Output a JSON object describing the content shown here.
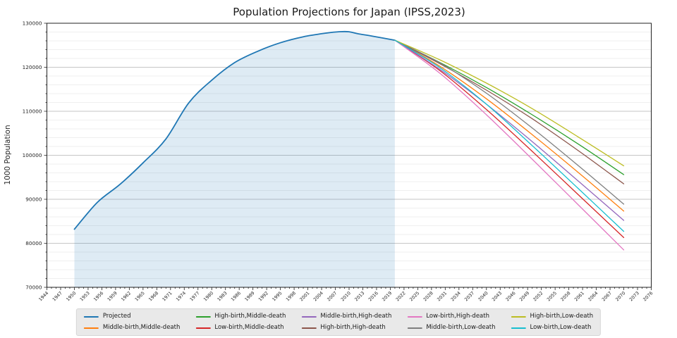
{
  "title": "Population Projections for Japan (IPSS,2023)",
  "ylabel": "1000 Population",
  "chart_data": {
    "type": "line",
    "title": "Population Projections for Japan (IPSS,2023)",
    "xlabel": "",
    "ylabel": "1000 Population",
    "xlim": [
      1944,
      2076
    ],
    "ylim": [
      70000,
      130000
    ],
    "x_major_tick_step": 3,
    "x_minor_tick_step": 1,
    "y_major_tick_step": 10000,
    "y_minor_tick_step": 2000,
    "grid": "horizontal major and minor gridlines, no vertical gridlines",
    "legend_position": "below axis, 5 columns x 2 rows, column-major",
    "historical_fill_range": [
      1950,
      2020
    ],
    "series": [
      {
        "name": "Projected",
        "role": "historical",
        "color": "#1f77b4",
        "fill": "rgba(31,119,180,0.15)",
        "linewidth": 1.8,
        "x": [
          1950,
          1955,
          1960,
          1965,
          1970,
          1975,
          1980,
          1985,
          1990,
          1995,
          2000,
          2005,
          2008,
          2010,
          2012,
          2015,
          2020
        ],
        "values": [
          83200,
          89276,
          93419,
          98275,
          103720,
          111940,
          117060,
          121049,
          123611,
          125570,
          126926,
          127768,
          128084,
          128057,
          127593,
          127095,
          126146
        ]
      },
      {
        "name": "Middle-birth,Middle-death",
        "role": "projection",
        "color": "#ff7f0e",
        "linewidth": 1.3,
        "x": [
          2020,
          2030,
          2040,
          2050,
          2060,
          2070
        ],
        "values": [
          126146,
          120116,
          112837,
          104686,
          96148,
          87320
        ]
      },
      {
        "name": "High-birth,Middle-death",
        "role": "projection",
        "color": "#2ca02c",
        "linewidth": 1.3,
        "x": [
          2020,
          2030,
          2040,
          2050,
          2060,
          2070
        ],
        "values": [
          126146,
          121000,
          115400,
          109200,
          102600,
          95600
        ]
      },
      {
        "name": "Low-birth,Middle-death",
        "role": "projection",
        "color": "#d62728",
        "linewidth": 1.3,
        "x": [
          2020,
          2030,
          2040,
          2050,
          2060,
          2070
        ],
        "values": [
          126146,
          119100,
          110400,
          100900,
          91100,
          81300
        ]
      },
      {
        "name": "Middle-birth,High-death",
        "role": "projection",
        "color": "#9467bd",
        "linewidth": 1.3,
        "x": [
          2020,
          2030,
          2040,
          2050,
          2060,
          2070
        ],
        "values": [
          126146,
          119400,
          111600,
          103100,
          94200,
          85200
        ]
      },
      {
        "name": "High-birth,High-death",
        "role": "projection",
        "color": "#8c564b",
        "linewidth": 1.3,
        "x": [
          2020,
          2030,
          2040,
          2050,
          2060,
          2070
        ],
        "values": [
          126146,
          120700,
          114800,
          108300,
          101100,
          93500
        ]
      },
      {
        "name": "Low-birth,High-death",
        "role": "projection",
        "color": "#e377c2",
        "linewidth": 1.3,
        "x": [
          2020,
          2030,
          2040,
          2050,
          2060,
          2070
        ],
        "values": [
          126146,
          118500,
          109200,
          99100,
          88800,
          78500
        ]
      },
      {
        "name": "Middle-birth,Low-death",
        "role": "projection",
        "color": "#7f7f7f",
        "linewidth": 1.3,
        "x": [
          2020,
          2030,
          2040,
          2050,
          2060,
          2070
        ],
        "values": [
          126146,
          120900,
          114100,
          106200,
          97700,
          88900
        ]
      },
      {
        "name": "High-birth,Low-death",
        "role": "projection",
        "color": "#bcbd22",
        "linewidth": 1.3,
        "x": [
          2020,
          2030,
          2040,
          2050,
          2060,
          2070
        ],
        "values": [
          126146,
          121600,
          116400,
          110600,
          104200,
          97600
        ]
      },
      {
        "name": "Low-birth,Low-death",
        "role": "projection",
        "color": "#17becf",
        "linewidth": 1.3,
        "x": [
          2020,
          2030,
          2040,
          2050,
          2060,
          2070
        ],
        "values": [
          126146,
          119800,
          111600,
          102200,
          92500,
          82700
        ]
      }
    ]
  },
  "legend": {
    "entries": [
      {
        "label": "Projected",
        "color": "#1f77b4"
      },
      {
        "label": "Middle-birth,Middle-death",
        "color": "#ff7f0e"
      },
      {
        "label": "High-birth,Middle-death",
        "color": "#2ca02c"
      },
      {
        "label": "Low-birth,Middle-death",
        "color": "#d62728"
      },
      {
        "label": "Middle-birth,High-death",
        "color": "#9467bd"
      },
      {
        "label": "High-birth,High-death",
        "color": "#8c564b"
      },
      {
        "label": "Low-birth,High-death",
        "color": "#e377c2"
      },
      {
        "label": "Middle-birth,Low-death",
        "color": "#7f7f7f"
      },
      {
        "label": "High-birth,Low-death",
        "color": "#bcbd22"
      },
      {
        "label": "Low-birth,Low-death",
        "color": "#17becf"
      }
    ]
  },
  "theme": {
    "spine_color": "#222222",
    "major_grid_color": "#c6c6c6",
    "minor_grid_color": "#efefef",
    "tick_label_color": "#262626",
    "legend_bg": "#e9e9e9"
  }
}
